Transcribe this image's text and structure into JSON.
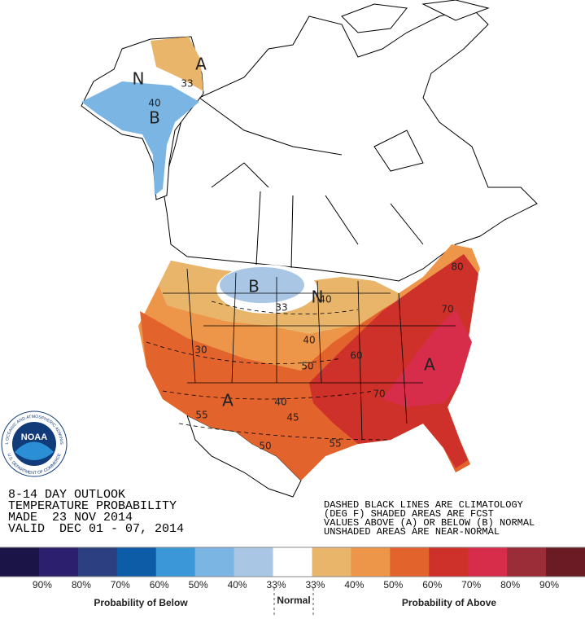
{
  "title_lines": [
    "8-14 DAY OUTLOOK",
    "TEMPERATURE PROBABILITY",
    "MADE  23 NOV 2014",
    "VALID  DEC 01 - 07, 2014"
  ],
  "note_lines": [
    "DASHED BLACK LINES ARE CLIMATOLOGY",
    "(DEG F) SHADED AREAS ARE FCST",
    "VALUES ABOVE (A) OR BELOW (B) NORMAL",
    "UNSHADED AREAS ARE NEAR-NORMAL"
  ],
  "map": {
    "labels": [
      "A",
      "N",
      "33",
      "40",
      "B",
      "B",
      "N",
      "33",
      "40",
      "50",
      "60",
      "70",
      "80",
      "A",
      "70",
      "A",
      "40",
      "45",
      "55",
      "50",
      "55",
      "30",
      "40"
    ]
  },
  "logo": {
    "name": "NOAA",
    "top": "NATIONAL OCEANIC AND ATMOSPHERIC ADMINISTRATION",
    "bottom": "U.S. DEPARTMENT OF COMMERCE"
  },
  "legend": {
    "colors": [
      "#1b1446",
      "#2b1f6e",
      "#2c3f80",
      "#0d5ca8",
      "#3b97d8",
      "#7bb5e3",
      "#a9c6e5",
      "#ffffff",
      "#e9b56b",
      "#ed9549",
      "#e3632d",
      "#cd3129",
      "#d72d4b",
      "#9b2d39",
      "#6b1b23"
    ],
    "labels": [
      "90%",
      "80%",
      "70%",
      "60%",
      "50%",
      "40%",
      "33%",
      "33%",
      "40%",
      "50%",
      "60%",
      "70%",
      "80%",
      "90%"
    ],
    "below": "Probability of Below",
    "normal": "Normal",
    "above": "Probability of Above"
  }
}
